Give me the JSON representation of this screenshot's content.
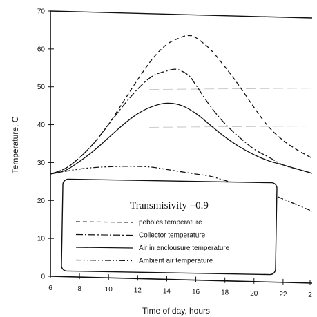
{
  "chart_data": {
    "type": "line",
    "title": "",
    "xlabel": "Time of day, hours",
    "ylabel": "Temperature, C",
    "xlim": [
      6,
      24
    ],
    "ylim": [
      0,
      70
    ],
    "x_ticks": [
      "6",
      "8",
      "10",
      "12",
      "14",
      "16",
      "18",
      "20",
      "22",
      "2"
    ],
    "y_ticks": [
      "0",
      "10",
      "20",
      "30",
      "40",
      "50",
      "60",
      "70"
    ],
    "legend": {
      "title": "Transmisivity =0.9",
      "placement": "lower-left"
    },
    "series": [
      {
        "name": "pebbles temperature",
        "style": "dashed",
        "points": [
          [
            6,
            27
          ],
          [
            7,
            28.5
          ],
          [
            8,
            31.5
          ],
          [
            9,
            35.5
          ],
          [
            10,
            40.5
          ],
          [
            11,
            46.5
          ],
          [
            12,
            52.5
          ],
          [
            13,
            58
          ],
          [
            14,
            62
          ],
          [
            15,
            64
          ],
          [
            15.5,
            64.5
          ],
          [
            16,
            64
          ],
          [
            17,
            61
          ],
          [
            18,
            56.5
          ],
          [
            19,
            51.5
          ],
          [
            20,
            46
          ],
          [
            21,
            41
          ],
          [
            22,
            37.5
          ],
          [
            23,
            35
          ],
          [
            24,
            33
          ]
        ]
      },
      {
        "name": "Collector temperature",
        "style": "dash-dot",
        "points": [
          [
            6,
            27
          ],
          [
            7,
            28.5
          ],
          [
            8,
            31.5
          ],
          [
            9,
            35.5
          ],
          [
            10,
            40.5
          ],
          [
            11,
            45.5
          ],
          [
            12,
            50
          ],
          [
            13,
            53.5
          ],
          [
            14,
            55
          ],
          [
            14.7,
            55.5
          ],
          [
            15.5,
            54
          ],
          [
            16,
            51.5
          ],
          [
            17,
            46
          ],
          [
            18,
            41.5
          ],
          [
            19,
            38
          ],
          [
            20,
            35
          ],
          [
            21,
            33
          ],
          [
            22,
            31
          ],
          [
            23,
            30
          ],
          [
            24,
            29
          ]
        ]
      },
      {
        "name": "Air in enclousure temperature",
        "style": "solid",
        "points": [
          [
            6,
            27
          ],
          [
            7,
            28
          ],
          [
            8,
            30.5
          ],
          [
            9,
            33.5
          ],
          [
            10,
            37
          ],
          [
            11,
            40.5
          ],
          [
            12,
            43.5
          ],
          [
            13,
            45.5
          ],
          [
            14,
            46.5
          ],
          [
            15,
            46
          ],
          [
            16,
            44
          ],
          [
            17,
            41
          ],
          [
            18,
            38
          ],
          [
            19,
            35.5
          ],
          [
            20,
            33.5
          ],
          [
            21,
            32
          ],
          [
            22,
            31
          ],
          [
            23,
            30
          ],
          [
            24,
            29
          ]
        ]
      },
      {
        "name": "Ambient air temperature",
        "style": "dash-dot-dot",
        "points": [
          [
            6,
            27
          ],
          [
            7,
            27.8
          ],
          [
            8,
            28.5
          ],
          [
            9,
            29
          ],
          [
            10,
            29.3
          ],
          [
            11,
            29.5
          ],
          [
            12,
            29.6
          ],
          [
            13,
            29.5
          ],
          [
            14,
            29
          ],
          [
            15,
            28.5
          ],
          [
            16,
            28
          ],
          [
            17,
            27.5
          ],
          [
            18,
            26.5
          ],
          [
            19,
            25.5
          ],
          [
            20,
            24.5
          ],
          [
            21,
            23.5
          ],
          [
            22,
            22
          ],
          [
            23,
            20.5
          ],
          [
            24,
            19
          ]
        ]
      }
    ]
  }
}
